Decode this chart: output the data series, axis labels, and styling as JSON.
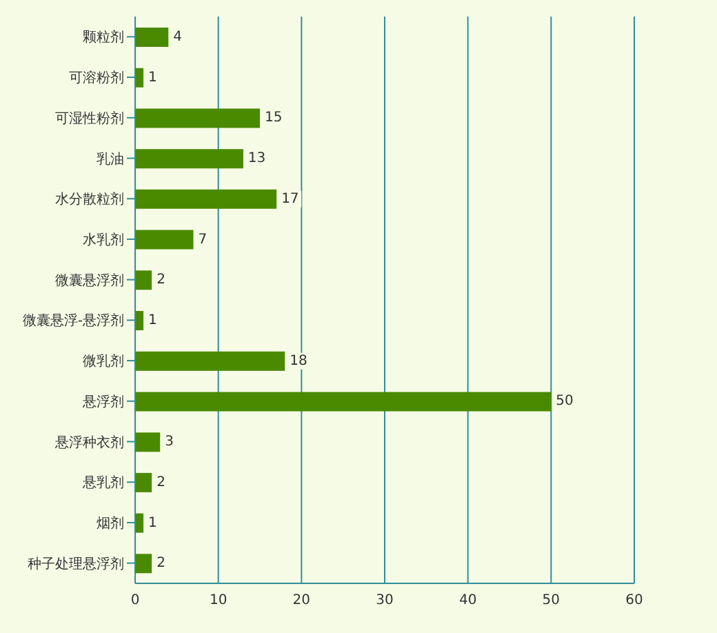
{
  "chart_data": {
    "type": "bar",
    "orientation": "horizontal",
    "categories": [
      "颗粒剂",
      "可溶粉剂",
      "可湿性粉剂",
      "乳油",
      "水分散粒剂",
      "水乳剂",
      "微囊悬浮剂",
      "微囊悬浮-悬浮剂",
      "微乳剂",
      "悬浮剂",
      "悬浮种衣剂",
      "悬乳剂",
      "烟剂",
      "种子处理悬浮剂"
    ],
    "values": [
      4,
      1,
      15,
      13,
      17,
      7,
      2,
      1,
      18,
      50,
      3,
      2,
      1,
      2
    ],
    "color": "#4a8a00",
    "xlim": [
      0,
      60
    ],
    "xticks": [
      0,
      10,
      20,
      30,
      40,
      50,
      60
    ],
    "grid": "x",
    "data_labels": true
  }
}
